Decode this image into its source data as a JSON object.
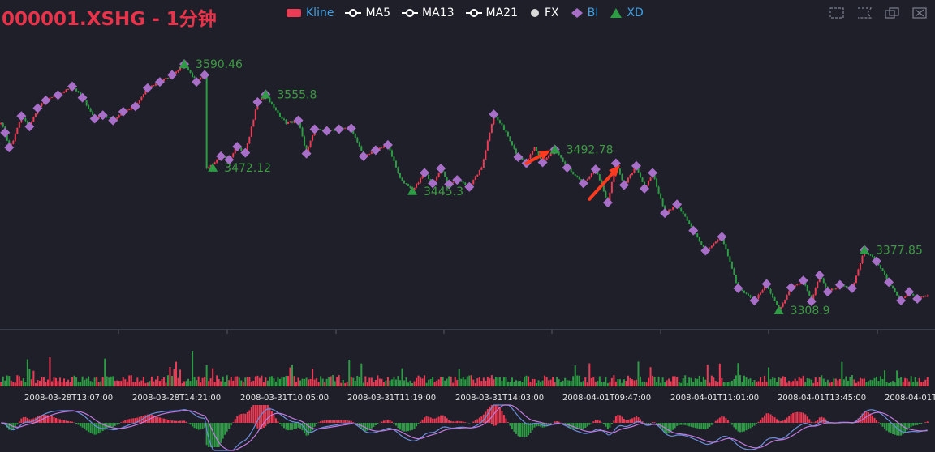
{
  "title": "000001.XSHG - 1分钟",
  "legend": [
    {
      "key": "kline",
      "label": "Kline",
      "color": "#ec3b54",
      "shape": "rect"
    },
    {
      "key": "ma5",
      "label": "MA5",
      "color": "#ffffff",
      "shape": "line-dot"
    },
    {
      "key": "ma13",
      "label": "MA13",
      "color": "#ffffff",
      "shape": "line-dot"
    },
    {
      "key": "ma21",
      "label": "MA21",
      "color": "#ffffff",
      "shape": "line-dot"
    },
    {
      "key": "fx",
      "label": "FX",
      "color": "#d9d9d9",
      "shape": "circle"
    },
    {
      "key": "bi",
      "label": "BI",
      "color": "#a86fc8",
      "shape": "diamond"
    },
    {
      "key": "xd",
      "label": "XD",
      "color": "#2e9b45",
      "shape": "triangle"
    }
  ],
  "toolbox": [
    {
      "name": "zoom-icon"
    },
    {
      "name": "zoom-reset-icon"
    },
    {
      "name": "restore-icon"
    },
    {
      "name": "fullscreen-icon"
    }
  ],
  "chart_data": {
    "type": "candlestick",
    "colors": {
      "up": "#ec3b54",
      "down": "#2e9b45",
      "bi": "#a86fc8",
      "xd": "#2e9b45",
      "axis": "#555a66",
      "macd_dif": "#6d8edc",
      "macd_dea": "#c27adf"
    },
    "x_tick_labels": [
      "2008-03-28T13:07:00",
      "2008-03-28T14:21:00",
      "2008-03-31T10:05:00",
      "2008-03-31T11:19:00",
      "2008-03-31T14:03:00",
      "2008-04-01T09:47:00",
      "2008-04-01T11:01:00",
      "2008-04-01T13:45:00",
      "2008-04-01T"
    ],
    "price_anchors": [
      [
        0,
        3524
      ],
      [
        2,
        3512
      ],
      [
        4,
        3495
      ],
      [
        6,
        3503
      ],
      [
        10,
        3531
      ],
      [
        14,
        3519
      ],
      [
        18,
        3540
      ],
      [
        22,
        3549
      ],
      [
        28,
        3555
      ],
      [
        35,
        3565
      ],
      [
        40,
        3552
      ],
      [
        46,
        3528
      ],
      [
        50,
        3532
      ],
      [
        55,
        3526
      ],
      [
        60,
        3536
      ],
      [
        66,
        3542
      ],
      [
        72,
        3563
      ],
      [
        78,
        3570
      ],
      [
        84,
        3578
      ],
      [
        90,
        3590.46
      ],
      [
        96,
        3570
      ],
      [
        100,
        3578
      ],
      [
        101,
        3472
      ],
      [
        104,
        3477
      ],
      [
        108,
        3485
      ],
      [
        112,
        3481
      ],
      [
        116,
        3496
      ],
      [
        120,
        3489
      ],
      [
        126,
        3547
      ],
      [
        130,
        3555.8
      ],
      [
        134,
        3540
      ],
      [
        140,
        3523
      ],
      [
        146,
        3526
      ],
      [
        150,
        3488
      ],
      [
        154,
        3516
      ],
      [
        160,
        3514
      ],
      [
        166,
        3516
      ],
      [
        172,
        3517
      ],
      [
        178,
        3485
      ],
      [
        184,
        3492
      ],
      [
        190,
        3498
      ],
      [
        196,
        3460
      ],
      [
        202,
        3445.3
      ],
      [
        208,
        3466
      ],
      [
        212,
        3454
      ],
      [
        216,
        3471
      ],
      [
        220,
        3453
      ],
      [
        224,
        3458
      ],
      [
        230,
        3450
      ],
      [
        236,
        3472
      ],
      [
        242,
        3533
      ],
      [
        248,
        3513
      ],
      [
        254,
        3484
      ],
      [
        258,
        3477
      ],
      [
        262,
        3495
      ],
      [
        266,
        3478
      ],
      [
        272,
        3492.78
      ],
      [
        278,
        3472
      ],
      [
        286,
        3454
      ],
      [
        292,
        3470
      ],
      [
        298,
        3432
      ],
      [
        302,
        3477
      ],
      [
        306,
        3452
      ],
      [
        312,
        3474
      ],
      [
        316,
        3448
      ],
      [
        320,
        3466
      ],
      [
        326,
        3420
      ],
      [
        332,
        3430
      ],
      [
        340,
        3400
      ],
      [
        346,
        3377
      ],
      [
        354,
        3393
      ],
      [
        362,
        3334
      ],
      [
        370,
        3320
      ],
      [
        376,
        3339
      ],
      [
        382,
        3308.9
      ],
      [
        388,
        3335
      ],
      [
        394,
        3343
      ],
      [
        398,
        3319
      ],
      [
        402,
        3349
      ],
      [
        406,
        3330
      ],
      [
        412,
        3338
      ],
      [
        418,
        3334
      ],
      [
        424,
        3377.85
      ],
      [
        430,
        3365
      ],
      [
        436,
        3341
      ],
      [
        442,
        3320
      ],
      [
        446,
        3330
      ],
      [
        450,
        3322
      ],
      [
        454,
        3325
      ]
    ],
    "bi_points": [
      [
        2,
        3512
      ],
      [
        4,
        3495
      ],
      [
        10,
        3531
      ],
      [
        14,
        3519
      ],
      [
        18,
        3540
      ],
      [
        22,
        3549
      ],
      [
        28,
        3555
      ],
      [
        35,
        3565
      ],
      [
        40,
        3552
      ],
      [
        46,
        3528
      ],
      [
        50,
        3532
      ],
      [
        55,
        3526
      ],
      [
        60,
        3536
      ],
      [
        66,
        3542
      ],
      [
        72,
        3563
      ],
      [
        78,
        3570
      ],
      [
        84,
        3578
      ],
      [
        90,
        3590.46
      ],
      [
        96,
        3570
      ],
      [
        100,
        3578
      ],
      [
        108,
        3485
      ],
      [
        112,
        3481
      ],
      [
        116,
        3496
      ],
      [
        120,
        3489
      ],
      [
        126,
        3547
      ],
      [
        130,
        3555.8
      ],
      [
        146,
        3526
      ],
      [
        150,
        3488
      ],
      [
        154,
        3516
      ],
      [
        160,
        3514
      ],
      [
        166,
        3516
      ],
      [
        172,
        3517
      ],
      [
        178,
        3485
      ],
      [
        184,
        3492
      ],
      [
        190,
        3498
      ],
      [
        208,
        3466
      ],
      [
        212,
        3454
      ],
      [
        216,
        3471
      ],
      [
        220,
        3453
      ],
      [
        224,
        3458
      ],
      [
        230,
        3450
      ],
      [
        242,
        3533
      ],
      [
        254,
        3484
      ],
      [
        258,
        3477
      ],
      [
        266,
        3478
      ],
      [
        272,
        3492.78
      ],
      [
        278,
        3472
      ],
      [
        286,
        3454
      ],
      [
        292,
        3470
      ],
      [
        298,
        3432
      ],
      [
        302,
        3477
      ],
      [
        306,
        3452
      ],
      [
        312,
        3474
      ],
      [
        316,
        3448
      ],
      [
        320,
        3466
      ],
      [
        326,
        3420
      ],
      [
        332,
        3430
      ],
      [
        340,
        3400
      ],
      [
        346,
        3377
      ],
      [
        354,
        3393
      ],
      [
        362,
        3334
      ],
      [
        370,
        3320
      ],
      [
        376,
        3339
      ],
      [
        388,
        3335
      ],
      [
        394,
        3343
      ],
      [
        398,
        3319
      ],
      [
        402,
        3349
      ],
      [
        406,
        3330
      ],
      [
        412,
        3338
      ],
      [
        418,
        3334
      ],
      [
        424,
        3377.85
      ],
      [
        430,
        3365
      ],
      [
        436,
        3341
      ],
      [
        442,
        3320
      ],
      [
        446,
        3330
      ],
      [
        450,
        3322
      ]
    ],
    "xd_points": [
      {
        "i": 90,
        "p": 3590.46,
        "label": "3590.46"
      },
      {
        "i": 130,
        "p": 3555.8,
        "label": "3555.8"
      },
      {
        "i": 104,
        "p": 3472.12,
        "label": "3472.12"
      },
      {
        "i": 202,
        "p": 3445.3,
        "label": "3445.3"
      },
      {
        "i": 272,
        "p": 3492.78,
        "label": "3492.78"
      },
      {
        "i": 382,
        "p": 3308.9,
        "label": "3308.9"
      },
      {
        "i": 424,
        "p": 3377.85,
        "label": "3377.85"
      }
    ],
    "annotations": [
      {
        "type": "arrow",
        "from": [
          258,
          3477
        ],
        "to": [
          270,
          3492
        ],
        "color": "#ff3a1f"
      },
      {
        "type": "arrow",
        "from": [
          289,
          3436
        ],
        "to": [
          304,
          3475
        ],
        "color": "#ff3a1f"
      }
    ],
    "y_range": [
      3295,
      3610
    ],
    "bar_count": 456
  }
}
